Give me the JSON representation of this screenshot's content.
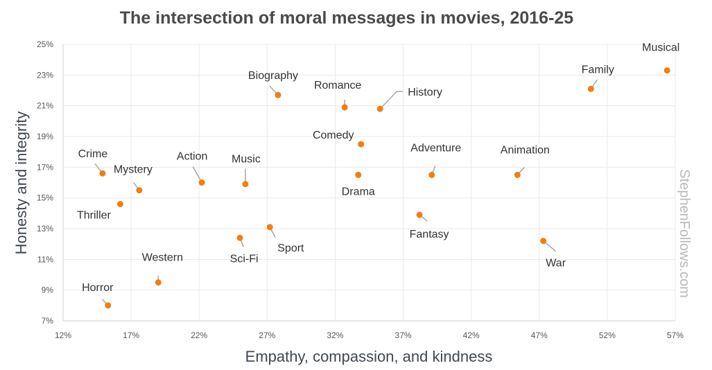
{
  "chart_data": {
    "type": "scatter",
    "title": "The intersection of moral messages in movies, 2016-25",
    "xlabel": "Empathy, compassion, and kindness",
    "ylabel": "Honesty and integrity",
    "xlim": [
      12,
      57
    ],
    "ylim": [
      7,
      25
    ],
    "x_ticks": [
      12,
      17,
      22,
      27,
      32,
      37,
      42,
      47,
      52,
      57
    ],
    "y_ticks": [
      7,
      9,
      11,
      13,
      15,
      17,
      19,
      21,
      23,
      25
    ],
    "x_tick_labels": [
      "12%",
      "17%",
      "22%",
      "27%",
      "32%",
      "37%",
      "42%",
      "47%",
      "52%",
      "57%"
    ],
    "y_tick_labels": [
      "7%",
      "9%",
      "11%",
      "13%",
      "15%",
      "17%",
      "19%",
      "21%",
      "23%",
      "25%"
    ],
    "grid": true,
    "marker_color": "#f07f13",
    "points": [
      {
        "label": "Musical",
        "x": 56.4,
        "y": 23.3
      },
      {
        "label": "Family",
        "x": 50.8,
        "y": 22.1
      },
      {
        "label": "Biography",
        "x": 27.8,
        "y": 21.7
      },
      {
        "label": "Romance",
        "x": 32.7,
        "y": 20.9
      },
      {
        "label": "History",
        "x": 35.3,
        "y": 20.8
      },
      {
        "label": "Comedy",
        "x": 33.9,
        "y": 18.5
      },
      {
        "label": "Crime",
        "x": 14.9,
        "y": 16.6
      },
      {
        "label": "Mystery",
        "x": 17.6,
        "y": 15.5
      },
      {
        "label": "Action",
        "x": 22.2,
        "y": 16.0
      },
      {
        "label": "Music",
        "x": 25.4,
        "y": 15.9
      },
      {
        "label": "Adventure",
        "x": 39.1,
        "y": 16.5
      },
      {
        "label": "Animation",
        "x": 45.4,
        "y": 16.5
      },
      {
        "label": "Drama",
        "x": 33.7,
        "y": 16.5
      },
      {
        "label": "Thriller",
        "x": 16.2,
        "y": 14.6
      },
      {
        "label": "Fantasy",
        "x": 38.2,
        "y": 13.9
      },
      {
        "label": "Sport",
        "x": 27.2,
        "y": 13.1
      },
      {
        "label": "Sci-Fi",
        "x": 25.0,
        "y": 12.4
      },
      {
        "label": "War",
        "x": 47.3,
        "y": 12.2
      },
      {
        "label": "Western",
        "x": 19.0,
        "y": 9.5
      },
      {
        "label": "Horror",
        "x": 15.3,
        "y": 8.0
      }
    ]
  },
  "watermark": "StephenFollows.com"
}
